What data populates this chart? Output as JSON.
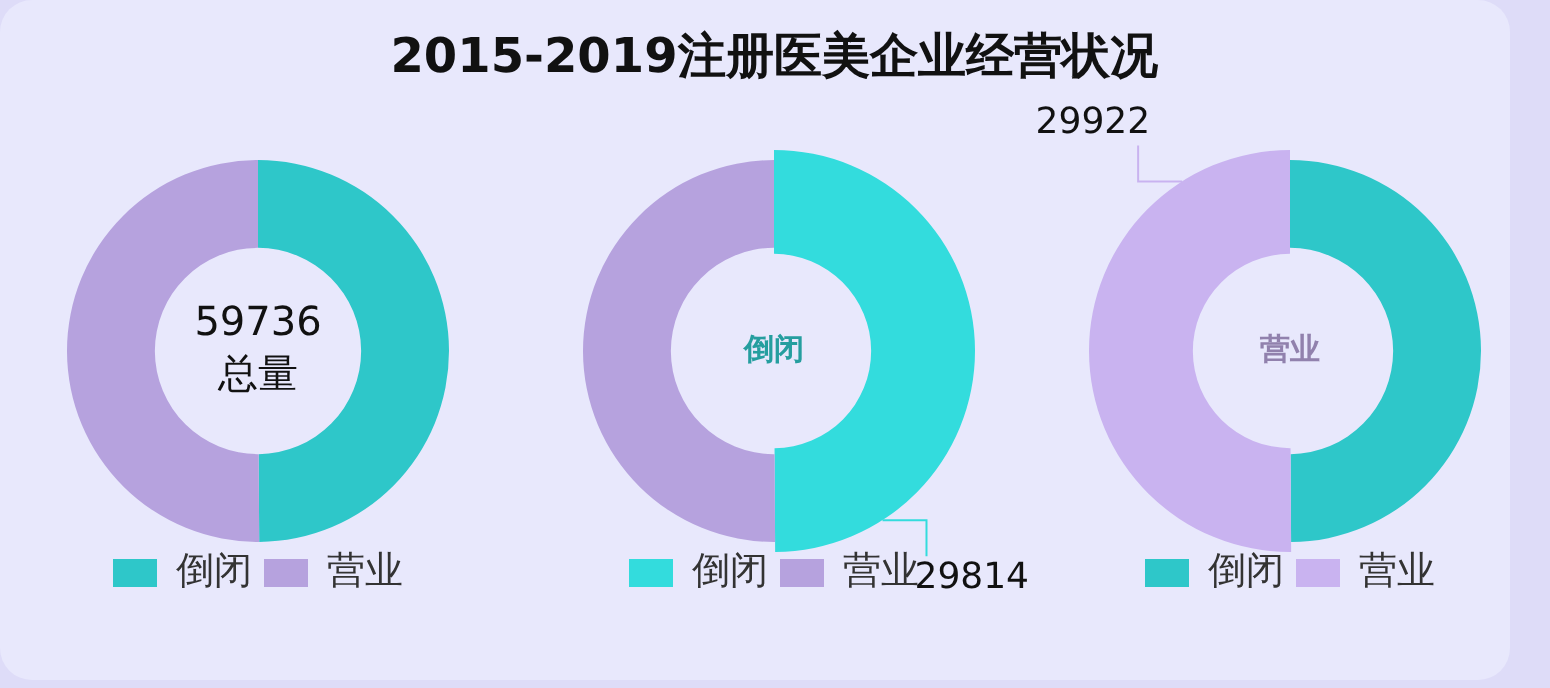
{
  "chart_data": [
    {
      "type": "donut",
      "categories": [
        "倒闭",
        "营业"
      ],
      "values": [
        49.9,
        50.1
      ],
      "colors": [
        "#2ec7c9",
        "#b6a2de"
      ],
      "legend": "bottom",
      "annotations": [
        "59736",
        "总量"
      ]
    },
    {
      "type": "donut",
      "title": "2015-2019注册医美企业经营状况",
      "categories": [
        "倒闭",
        "营业"
      ],
      "values": [
        29814,
        29922
      ],
      "colors": [
        "#33dcdd",
        "#b6a2de"
      ],
      "legend": "bottom",
      "value_labels": [
        "29814",
        null
      ],
      "annotations": [
        "倒闭"
      ]
    },
    {
      "type": "donut",
      "categories": [
        "倒闭",
        "营业"
      ],
      "values": [
        29814,
        29922
      ],
      "colors": [
        "#2ec7c9",
        "#c9b3f0"
      ],
      "legend": "bottom",
      "value_labels": [
        null,
        "29922"
      ],
      "annotations": [
        "营业"
      ]
    }
  ]
}
